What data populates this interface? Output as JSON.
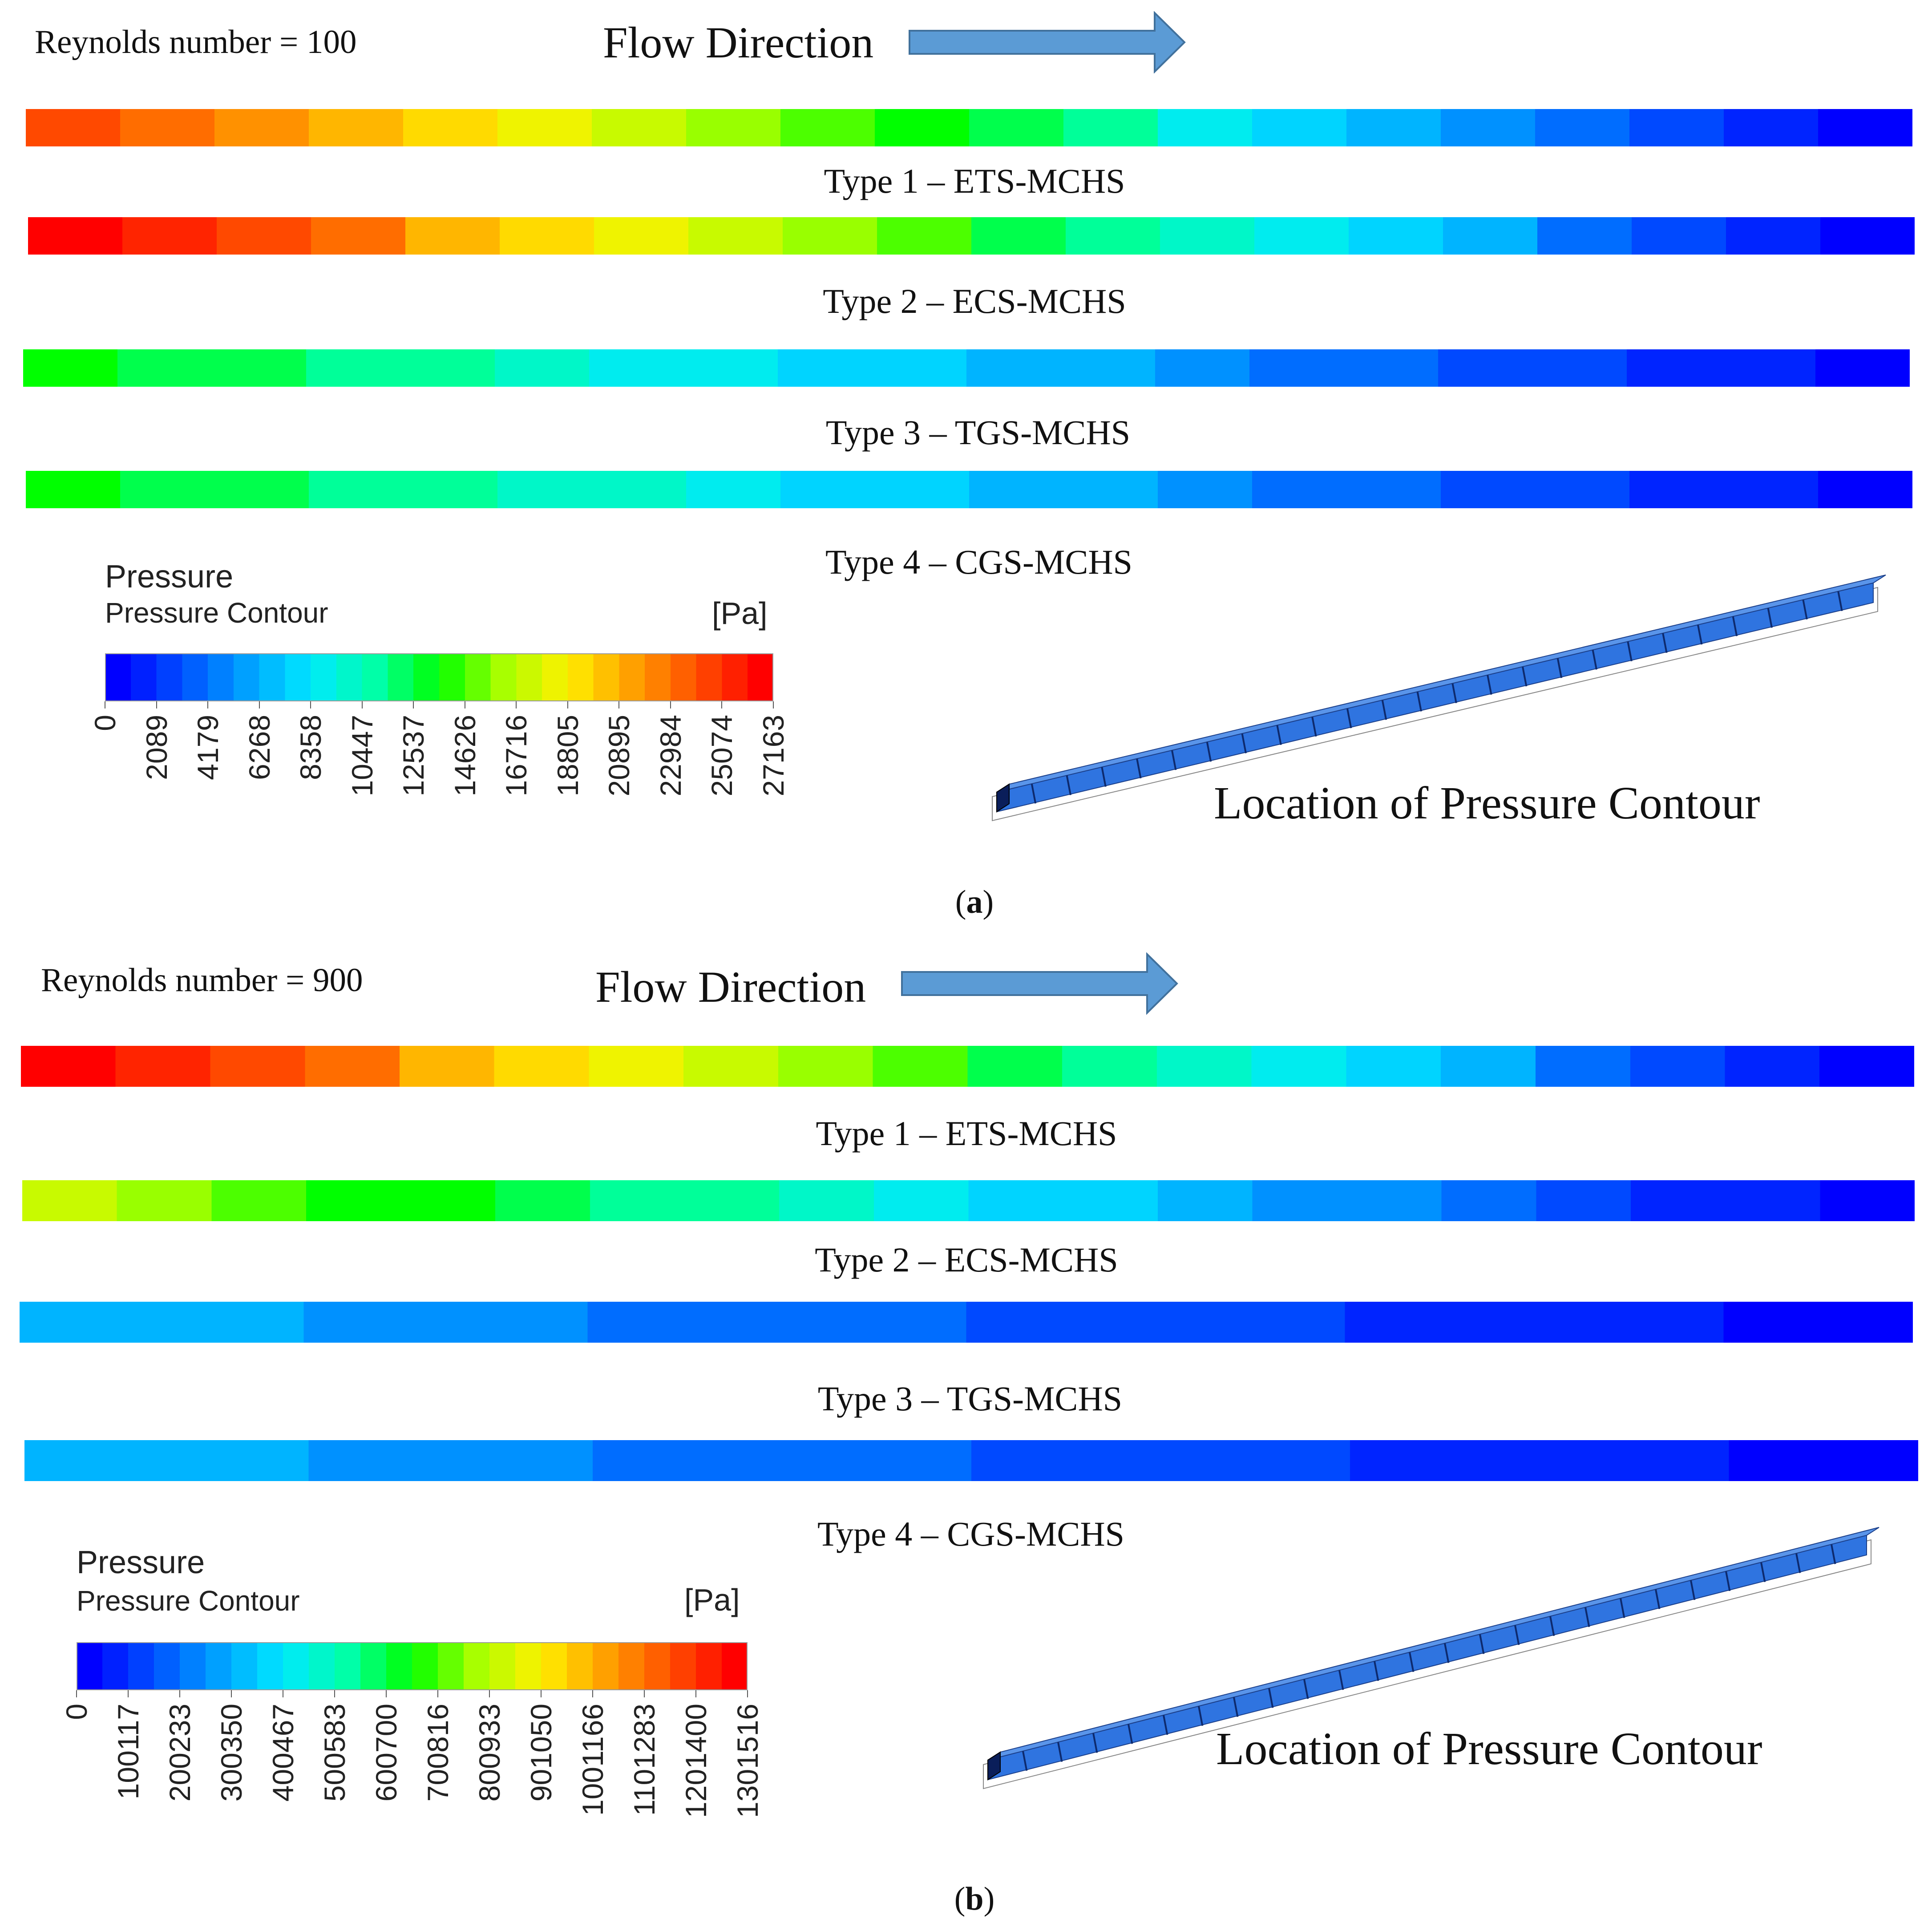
{
  "colors": {
    "jet": [
      "#0000ff",
      "#0050ff",
      "#00a0ff",
      "#00e8ff",
      "#00ffa8",
      "#00ff00",
      "#a8ff00",
      "#fff000",
      "#ffa000",
      "#ff5000",
      "#ff0000"
    ],
    "arrow_fill": "#5b9bd5",
    "arrow_stroke": "#41719c",
    "channel_fill": "#2f74e0",
    "channel_dark": "#0a1e5a"
  },
  "panels": [
    {
      "label_open": "(",
      "label_letter": "a",
      "label_close": ")",
      "reynolds": "Reynolds number = 100",
      "flow_direction": "Flow Direction",
      "location_label": "Location of Pressure Contour",
      "contours": [
        {
          "type_label": "Type 1 – ETS-MCHS",
          "start_fraction": 0.92,
          "end_fraction": 0.0
        },
        {
          "type_label": "Type 2 – ECS-MCHS",
          "start_fraction": 1.0,
          "end_fraction": 0.0
        },
        {
          "type_label": "Type 3 – TGS-MCHS",
          "start_fraction": 0.49,
          "end_fraction": 0.0
        },
        {
          "type_label": "Type 4 – CGS-MCHS",
          "start_fraction": 0.5,
          "end_fraction": 0.0
        }
      ],
      "legend": {
        "title": "Pressure",
        "subtitle": "Pressure Contour",
        "unit": "[Pa]",
        "ticks": [
          "0",
          "2089",
          "4179",
          "6268",
          "8358",
          "10447",
          "12537",
          "14626",
          "16716",
          "18805",
          "20895",
          "22984",
          "25074",
          "27163"
        ]
      }
    },
    {
      "label_open": "(",
      "label_letter": "b",
      "label_close": ")",
      "reynolds": "Reynolds number = 900",
      "flow_direction": "Flow Direction",
      "location_label": "Location of Pressure Contour",
      "contours": [
        {
          "type_label": "Type 1 – ETS-MCHS",
          "start_fraction": 1.0,
          "end_fraction": 0.0
        },
        {
          "type_label": "Type 2 – ECS-MCHS",
          "start_fraction": 0.62,
          "end_fraction": 0.0
        },
        {
          "type_label": "Type 3 – TGS-MCHS",
          "start_fraction": 0.23,
          "end_fraction": 0.0
        },
        {
          "type_label": "Type 4 – CGS-MCHS",
          "start_fraction": 0.23,
          "end_fraction": 0.0
        }
      ],
      "legend": {
        "title": "Pressure",
        "subtitle": "Pressure Contour",
        "unit": "[Pa]",
        "ticks": [
          "0",
          "100117",
          "200233",
          "300350",
          "400467",
          "500583",
          "600700",
          "700816",
          "800933",
          "901050",
          "1001166",
          "1101283",
          "1201400",
          "1301516"
        ]
      }
    }
  ]
}
